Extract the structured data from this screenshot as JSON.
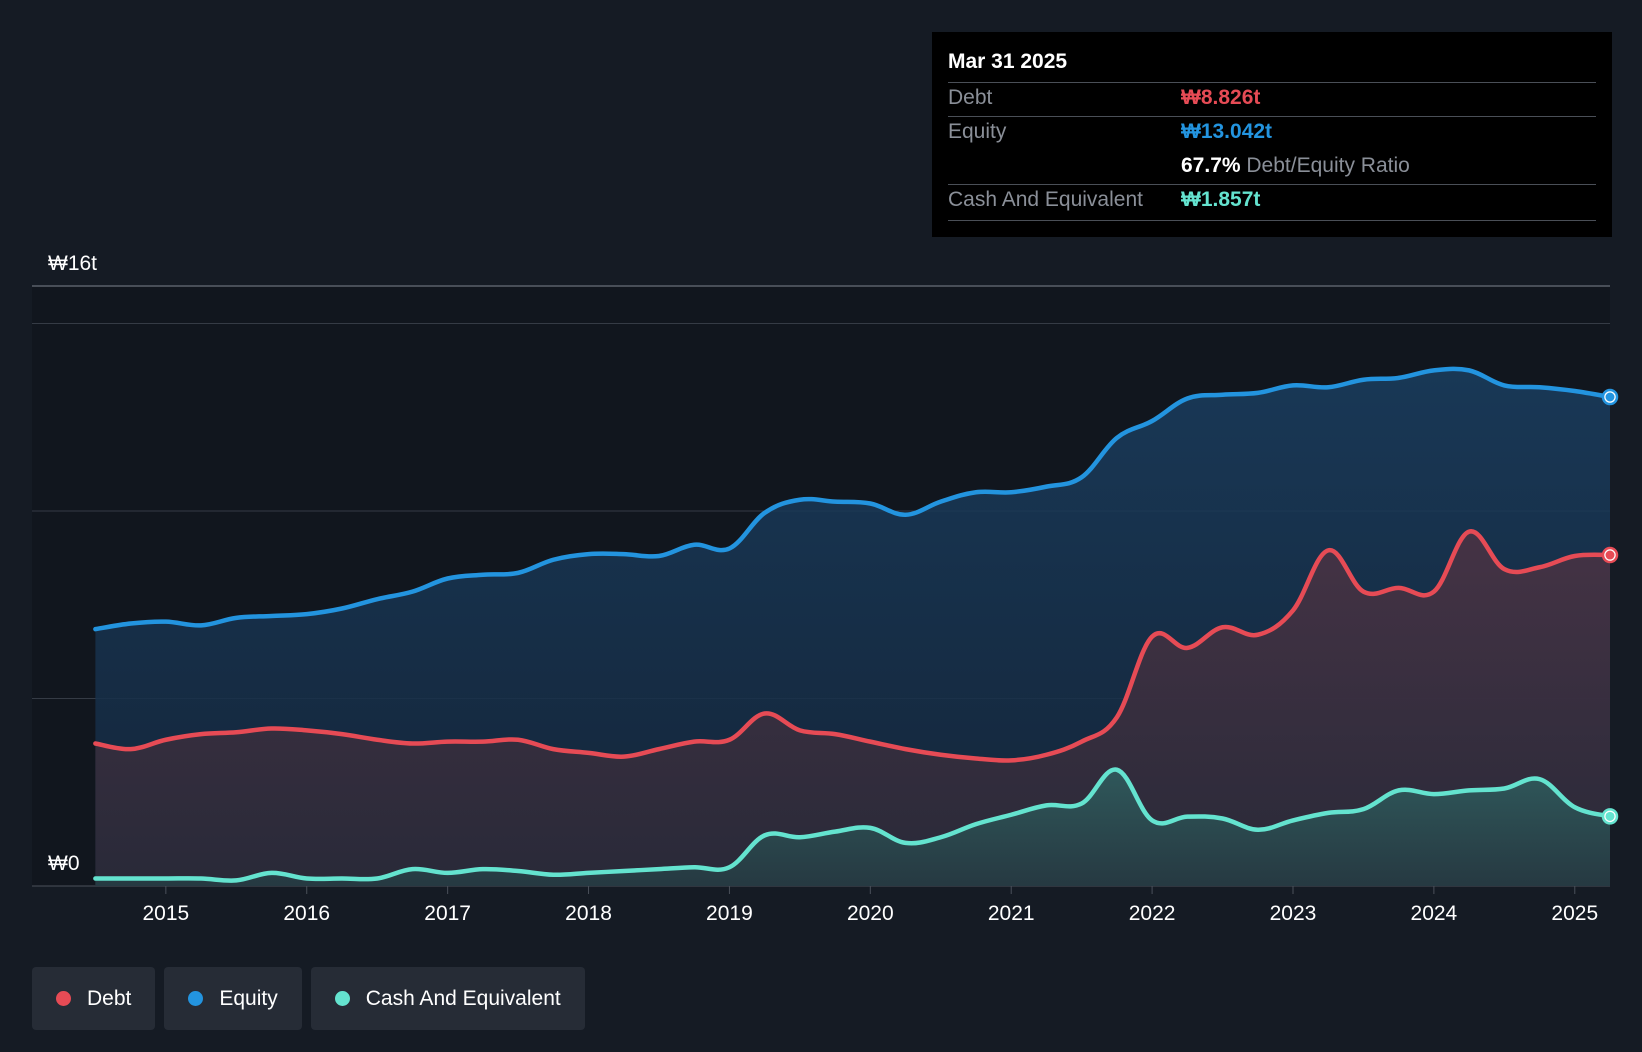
{
  "tooltip": {
    "date": "Mar 31 2025",
    "debt_label": "Debt",
    "debt_value": "₩8.826t",
    "equity_label": "Equity",
    "equity_value": "₩13.042t",
    "ratio_value": "67.7%",
    "ratio_label": "Debt/Equity Ratio",
    "cash_label": "Cash And Equivalent",
    "cash_value": "₩1.857t"
  },
  "legend": {
    "debt": "Debt",
    "equity": "Equity",
    "cash": "Cash And Equivalent"
  },
  "colors": {
    "background": "#151b24",
    "debt": "#e64b55",
    "equity": "#2394df",
    "cash": "#64e3cf",
    "grid": "#353b45"
  },
  "chart_data": {
    "type": "area",
    "title": "",
    "xlabel": "",
    "ylabel": "",
    "ylim": [
      0,
      16
    ],
    "unit": "₩ trillion",
    "y_tick_labels": [
      {
        "value": 16,
        "label": "₩16t"
      },
      {
        "value": 0,
        "label": "₩0"
      }
    ],
    "gridlines": [
      0,
      5,
      10,
      15,
      16
    ],
    "x_ticks": [
      {
        "value": 2015.0,
        "label": "2015"
      },
      {
        "value": 2016.0,
        "label": "2016"
      },
      {
        "value": 2017.0,
        "label": "2017"
      },
      {
        "value": 2018.0,
        "label": "2018"
      },
      {
        "value": 2019.0,
        "label": "2019"
      },
      {
        "value": 2020.0,
        "label": "2020"
      },
      {
        "value": 2021.0,
        "label": "2021"
      },
      {
        "value": 2022.0,
        "label": "2022"
      },
      {
        "value": 2023.0,
        "label": "2023"
      },
      {
        "value": 2024.0,
        "label": "2024"
      },
      {
        "value": 2025.0,
        "label": "2025"
      }
    ],
    "xlim": [
      2014.05,
      2025.25
    ],
    "x": [
      2014.5,
      2014.75,
      2015.0,
      2015.25,
      2015.5,
      2015.75,
      2016.0,
      2016.25,
      2016.5,
      2016.75,
      2017.0,
      2017.25,
      2017.5,
      2017.75,
      2018.0,
      2018.25,
      2018.5,
      2018.75,
      2019.0,
      2019.25,
      2019.5,
      2019.75,
      2020.0,
      2020.25,
      2020.5,
      2020.75,
      2021.0,
      2021.25,
      2021.5,
      2021.75,
      2022.0,
      2022.25,
      2022.5,
      2022.75,
      2023.0,
      2023.25,
      2023.5,
      2023.75,
      2024.0,
      2024.25,
      2024.5,
      2024.75,
      2025.0,
      2025.25
    ],
    "series": [
      {
        "name": "Equity",
        "color": "#2394df",
        "values": [
          6.85,
          7.0,
          7.05,
          6.95,
          7.15,
          7.2,
          7.25,
          7.4,
          7.65,
          7.85,
          8.2,
          8.3,
          8.35,
          8.7,
          8.85,
          8.85,
          8.8,
          9.1,
          9.0,
          9.95,
          10.3,
          10.25,
          10.2,
          9.9,
          10.25,
          10.5,
          10.5,
          10.65,
          10.9,
          11.95,
          12.4,
          13.0,
          13.1,
          13.15,
          13.35,
          13.3,
          13.5,
          13.55,
          13.75,
          13.75,
          13.35,
          13.3,
          13.2,
          13.04
        ]
      },
      {
        "name": "Debt",
        "color": "#e64b55",
        "values": [
          3.8,
          3.65,
          3.9,
          4.05,
          4.1,
          4.2,
          4.15,
          4.05,
          3.9,
          3.8,
          3.85,
          3.85,
          3.9,
          3.65,
          3.55,
          3.45,
          3.65,
          3.85,
          3.9,
          4.6,
          4.15,
          4.05,
          3.85,
          3.65,
          3.5,
          3.4,
          3.35,
          3.5,
          3.85,
          4.5,
          6.65,
          6.35,
          6.9,
          6.7,
          7.35,
          8.95,
          7.85,
          7.95,
          7.85,
          9.45,
          8.45,
          8.5,
          8.8,
          8.826
        ]
      },
      {
        "name": "Cash And Equivalent",
        "color": "#64e3cf",
        "values": [
          0.2,
          0.2,
          0.2,
          0.2,
          0.15,
          0.35,
          0.2,
          0.2,
          0.2,
          0.45,
          0.35,
          0.45,
          0.4,
          0.3,
          0.35,
          0.4,
          0.45,
          0.5,
          0.5,
          1.35,
          1.3,
          1.45,
          1.55,
          1.15,
          1.3,
          1.65,
          1.9,
          2.15,
          2.2,
          3.1,
          1.75,
          1.85,
          1.8,
          1.5,
          1.75,
          1.95,
          2.05,
          2.55,
          2.45,
          2.55,
          2.6,
          2.85,
          2.1,
          1.857
        ]
      }
    ]
  }
}
